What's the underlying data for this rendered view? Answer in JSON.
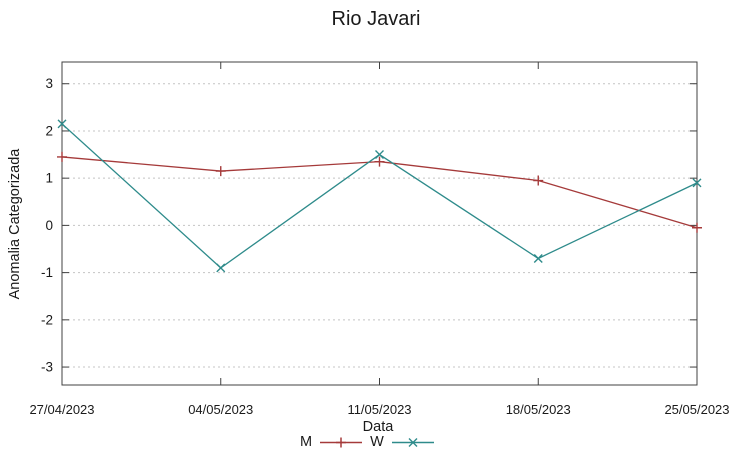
{
  "chart_data": {
    "type": "line",
    "title": "Rio Javari",
    "xlabel": "Data",
    "ylabel": "Anomalia Categorizada",
    "categories": [
      "27/04/2023",
      "04/05/2023",
      "11/05/2023",
      "18/05/2023",
      "25/05/2023"
    ],
    "series": [
      {
        "name": "M",
        "marker": "plus",
        "color": "#a53a3a",
        "values": [
          1.45,
          1.15,
          1.35,
          0.95,
          -0.05
        ]
      },
      {
        "name": "W",
        "marker": "cross",
        "color": "#2e8b8b",
        "values": [
          2.15,
          -0.9,
          1.5,
          -0.7,
          0.9
        ]
      }
    ],
    "yticks": [
      -3,
      -2,
      -1,
      0,
      1,
      2,
      3
    ],
    "ylim": [
      -3.38,
      3.46
    ],
    "grid": "horizontal-dashed",
    "legend_position": "bottom-center",
    "colors": {
      "grid": "#c4c4c4",
      "axis": "#404040",
      "text": "#1a1a1a"
    }
  }
}
